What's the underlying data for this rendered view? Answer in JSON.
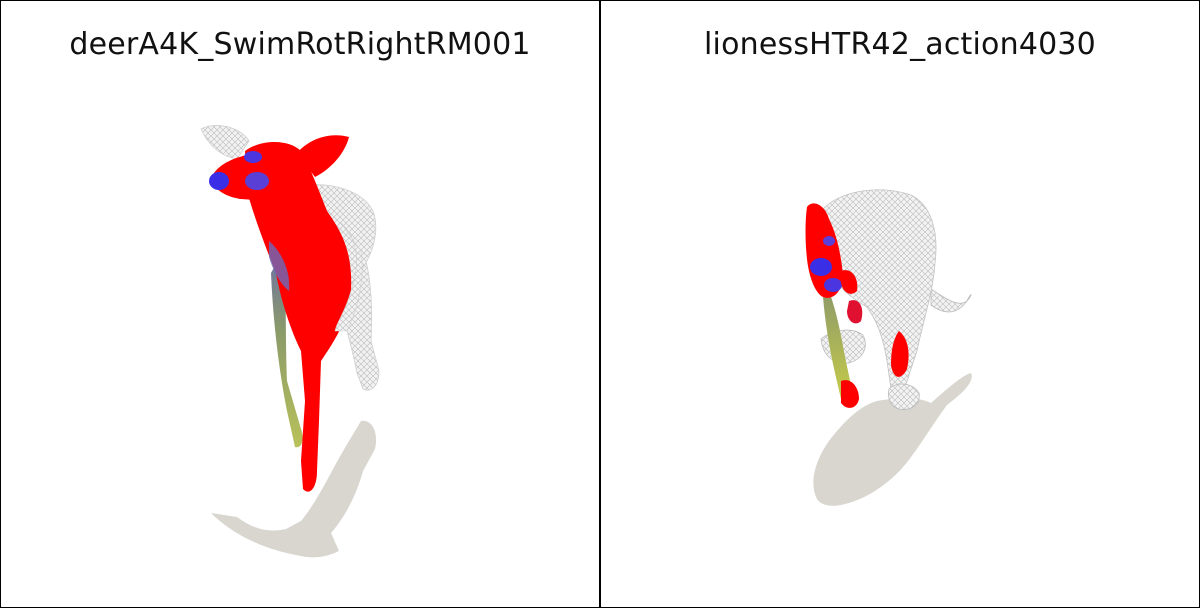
{
  "panels": [
    {
      "title": "deerA4K_SwimRotRightRM001"
    },
    {
      "title": "lionessHTR42_action4030"
    }
  ],
  "colors": {
    "shadow": "#d8d6cf",
    "highlight": "#ff0000",
    "blue_patch": "#3a2fe6",
    "green": "#8fae4b",
    "mesh_white": "#e6e6e6",
    "border": "#000000"
  }
}
